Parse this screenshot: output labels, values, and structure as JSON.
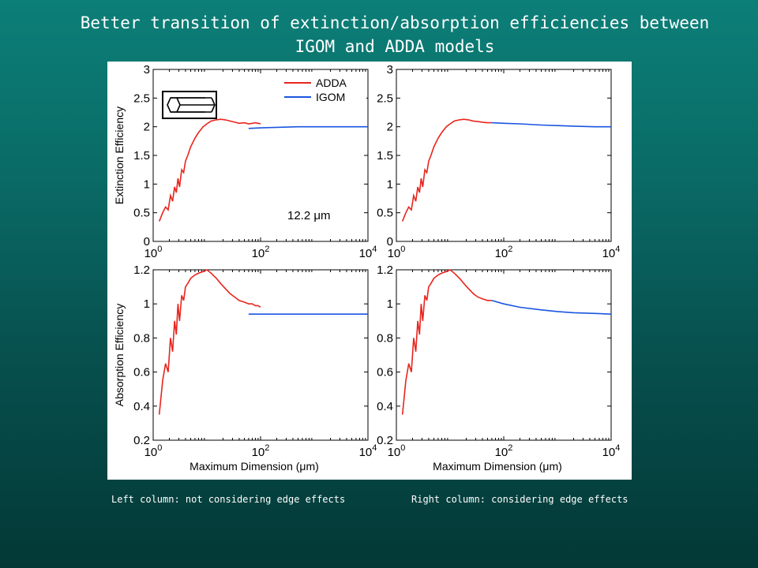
{
  "slide": {
    "title_line1": "Better transition of extinction/absorption efficiencies between",
    "title_line2": "IGOM and ADDA models",
    "caption_left": "Left column: not considering edge effects",
    "caption_right": "Right column: considering edge effects"
  },
  "figure": {
    "annotation": "12.2 μm",
    "crystal_shape": "hexagonal-column-icon",
    "colors": {
      "ADDA": "#e8251d",
      "IGOM": "#1a55e0"
    }
  },
  "chart_data": [
    {
      "id": "top-left",
      "type": "line",
      "xscale": "log",
      "xlim": [
        1,
        10000
      ],
      "ylim": [
        0,
        3
      ],
      "xticks": [
        1,
        100,
        10000
      ],
      "xtick_labels": [
        "10",
        "10",
        "10"
      ],
      "xtick_exponents": [
        "0",
        "2",
        "4"
      ],
      "yticks": [
        0,
        0.5,
        1,
        1.5,
        2,
        2.5,
        3
      ],
      "ytick_labels": [
        "0",
        "0.5",
        "1",
        "1.5",
        "2",
        "2.5",
        "3"
      ],
      "ylabel": "Extinction Efficiency",
      "xlabel": "",
      "legend": [
        "ADDA",
        "IGOM"
      ],
      "legend_position": "top-right",
      "series": [
        {
          "name": "ADDA",
          "x": [
            1.3,
            1.5,
            1.7,
            1.9,
            2.1,
            2.3,
            2.5,
            2.7,
            2.9,
            3.1,
            3.4,
            3.7,
            4.0,
            4.4,
            5.0,
            6.0,
            7.0,
            8.5,
            10,
            12,
            15,
            18,
            22,
            27,
            33,
            40,
            50,
            60,
            70,
            80,
            90,
            100
          ],
          "y": [
            0.35,
            0.5,
            0.6,
            0.55,
            0.8,
            0.7,
            0.95,
            0.85,
            1.1,
            0.95,
            1.25,
            1.2,
            1.4,
            1.5,
            1.65,
            1.8,
            1.9,
            2.0,
            2.05,
            2.1,
            2.12,
            2.13,
            2.12,
            2.1,
            2.08,
            2.06,
            2.07,
            2.05,
            2.06,
            2.07,
            2.06,
            2.05
          ]
        },
        {
          "name": "IGOM",
          "x": [
            60,
            100,
            200,
            500,
            1000,
            2000,
            5000,
            10000
          ],
          "y": [
            1.97,
            1.98,
            1.99,
            2.0,
            2.0,
            2.0,
            2.0,
            2.0
          ]
        }
      ]
    },
    {
      "id": "top-right",
      "type": "line",
      "xscale": "log",
      "xlim": [
        1,
        10000
      ],
      "ylim": [
        0,
        3
      ],
      "xticks": [
        1,
        100,
        10000
      ],
      "xtick_labels": [
        "10",
        "10",
        "10"
      ],
      "xtick_exponents": [
        "0",
        "2",
        "4"
      ],
      "yticks": [
        0,
        0.5,
        1,
        1.5,
        2,
        2.5,
        3
      ],
      "ytick_labels": [
        "0",
        "0.5",
        "1",
        "1.5",
        "2",
        "2.5",
        "3"
      ],
      "ylabel": "",
      "xlabel": "",
      "series": [
        {
          "name": "ADDA",
          "x": [
            1.3,
            1.5,
            1.7,
            1.9,
            2.1,
            2.3,
            2.5,
            2.7,
            2.9,
            3.1,
            3.4,
            3.7,
            4.0,
            4.4,
            5.0,
            6.0,
            7.0,
            8.5,
            10,
            12,
            15,
            18,
            22,
            27,
            33,
            40,
            50,
            60
          ],
          "y": [
            0.35,
            0.5,
            0.6,
            0.55,
            0.8,
            0.7,
            0.95,
            0.85,
            1.1,
            0.95,
            1.25,
            1.2,
            1.4,
            1.5,
            1.65,
            1.8,
            1.9,
            2.0,
            2.05,
            2.1,
            2.12,
            2.13,
            2.12,
            2.1,
            2.09,
            2.08,
            2.07,
            2.07
          ]
        },
        {
          "name": "IGOM",
          "x": [
            60,
            100,
            200,
            500,
            1000,
            2000,
            5000,
            10000
          ],
          "y": [
            2.07,
            2.06,
            2.05,
            2.03,
            2.02,
            2.01,
            2.0,
            2.0
          ]
        }
      ]
    },
    {
      "id": "bottom-left",
      "type": "line",
      "xscale": "log",
      "xlim": [
        1,
        10000
      ],
      "ylim": [
        0.2,
        1.2
      ],
      "xticks": [
        1,
        100,
        10000
      ],
      "xtick_labels": [
        "10",
        "10",
        "10"
      ],
      "xtick_exponents": [
        "0",
        "2",
        "4"
      ],
      "yticks": [
        0.2,
        0.4,
        0.6,
        0.8,
        1,
        1.2
      ],
      "ytick_labels": [
        "0.2",
        "0.4",
        "0.6",
        "0.8",
        "1",
        "1.2"
      ],
      "ylabel": "Absorption Efficiency",
      "xlabel": "Maximum Dimension (μm)",
      "series": [
        {
          "name": "ADDA",
          "x": [
            1.3,
            1.5,
            1.7,
            1.9,
            2.1,
            2.3,
            2.5,
            2.7,
            2.9,
            3.1,
            3.4,
            3.7,
            4.0,
            4.4,
            5.0,
            6.0,
            7.0,
            8.5,
            10,
            12,
            15,
            18,
            22,
            27,
            33,
            40,
            50,
            60,
            70,
            80,
            90,
            100
          ],
          "y": [
            0.35,
            0.55,
            0.65,
            0.6,
            0.8,
            0.72,
            0.9,
            0.82,
            1.0,
            0.9,
            1.05,
            1.02,
            1.1,
            1.12,
            1.15,
            1.17,
            1.18,
            1.19,
            1.2,
            1.18,
            1.15,
            1.12,
            1.09,
            1.06,
            1.04,
            1.02,
            1.01,
            1.0,
            1.0,
            0.99,
            0.99,
            0.98
          ]
        },
        {
          "name": "IGOM",
          "x": [
            60,
            100,
            200,
            500,
            1000,
            2000,
            5000,
            10000
          ],
          "y": [
            0.94,
            0.94,
            0.94,
            0.94,
            0.94,
            0.94,
            0.94,
            0.94
          ]
        }
      ]
    },
    {
      "id": "bottom-right",
      "type": "line",
      "xscale": "log",
      "xlim": [
        1,
        10000
      ],
      "ylim": [
        0.2,
        1.2
      ],
      "xticks": [
        1,
        100,
        10000
      ],
      "xtick_labels": [
        "10",
        "10",
        "10"
      ],
      "xtick_exponents": [
        "0",
        "2",
        "4"
      ],
      "yticks": [
        0.2,
        0.4,
        0.6,
        0.8,
        1,
        1.2
      ],
      "ytick_labels": [
        "0.2",
        "0.4",
        "0.6",
        "0.8",
        "1",
        "1.2"
      ],
      "ylabel": "",
      "xlabel": "Maximum Dimension (μm)",
      "series": [
        {
          "name": "ADDA",
          "x": [
            1.3,
            1.5,
            1.7,
            1.9,
            2.1,
            2.3,
            2.5,
            2.7,
            2.9,
            3.1,
            3.4,
            3.7,
            4.0,
            4.4,
            5.0,
            6.0,
            7.0,
            8.5,
            10,
            12,
            15,
            18,
            22,
            27,
            33,
            40,
            50,
            60
          ],
          "y": [
            0.35,
            0.55,
            0.65,
            0.6,
            0.8,
            0.72,
            0.9,
            0.82,
            1.0,
            0.9,
            1.05,
            1.02,
            1.1,
            1.12,
            1.15,
            1.17,
            1.18,
            1.19,
            1.2,
            1.18,
            1.15,
            1.12,
            1.09,
            1.06,
            1.04,
            1.03,
            1.02,
            1.02
          ]
        },
        {
          "name": "IGOM",
          "x": [
            60,
            100,
            200,
            500,
            1000,
            2000,
            5000,
            10000
          ],
          "y": [
            1.02,
            1.0,
            0.98,
            0.965,
            0.955,
            0.948,
            0.944,
            0.94
          ]
        }
      ]
    }
  ]
}
